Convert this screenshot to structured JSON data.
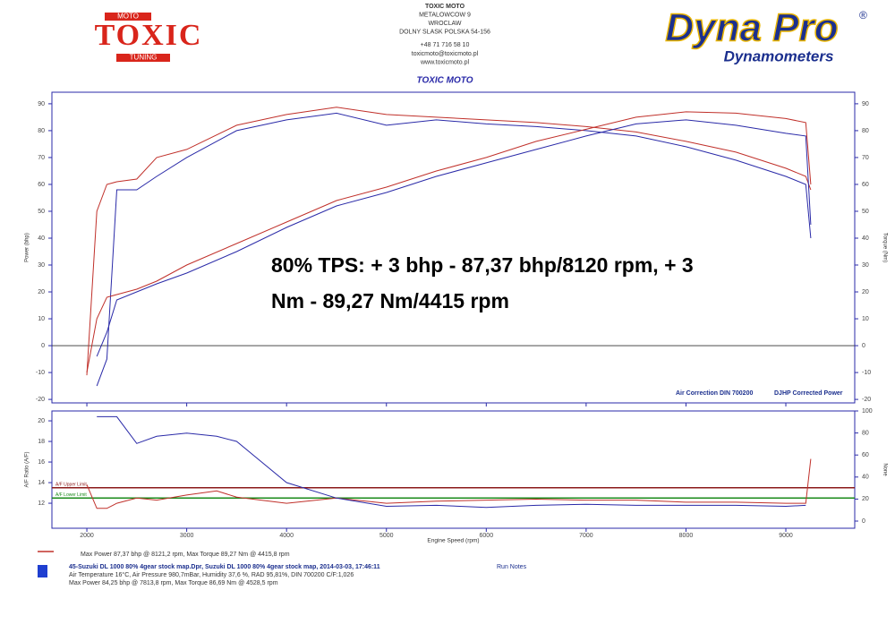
{
  "header": {
    "logo": {
      "main": "TOXIC",
      "top": "MOTO",
      "bottom": "TUNING"
    },
    "address": [
      "TOXIC MOTO",
      "METALOWCOW 9",
      "WROCLAW",
      "DOLNY SLASK POLSKA 54-156",
      "+48 71 716 58 10",
      "toxicmoto@toxicmoto.pl",
      "www.toxicmoto.pl"
    ],
    "subtitle": "TOXIC MOTO",
    "brand": {
      "name": "Dyna Pro",
      "mark": "®",
      "tagline": "Dynamometers"
    }
  },
  "chart_data": [
    {
      "type": "line",
      "ylabel": "Power (bhp)",
      "y2label": "Torque (Nm)",
      "annotation": [
        "80% TPS: + 3 bhp - 87,37 bhp/8120 rpm, + 3",
        "Nm - 89,27 Nm/4415 rpm"
      ],
      "corrections": [
        "Air Correction DIN 700200",
        "DJHP Corrected Power"
      ],
      "x": [
        2000,
        2100,
        2200,
        2300,
        2500,
        2700,
        3000,
        3500,
        4000,
        4500,
        5000,
        5500,
        6000,
        6500,
        7000,
        7500,
        8000,
        8500,
        9000,
        9200,
        9250
      ],
      "xlim": [
        1650,
        9690
      ],
      "xticks": [
        2000,
        3000,
        4000,
        5000,
        6000,
        7000,
        8000,
        9000
      ],
      "xtick_labels": false,
      "ylim": [
        -21.3,
        94.3
      ],
      "yticks": [
        -20,
        -10,
        0,
        10,
        20,
        30,
        40,
        50,
        60,
        70,
        80,
        90
      ],
      "y2lim": [
        -21.3,
        94.3
      ],
      "y2ticks": [
        -20,
        -10,
        0,
        10,
        20,
        30,
        40,
        50,
        60,
        70,
        80,
        90
      ],
      "series": [
        {
          "color": "#c0302a",
          "axis": "y2",
          "values": [
            -11,
            50,
            60,
            61,
            62,
            70,
            73,
            82,
            86,
            88.7,
            86,
            85,
            84,
            83,
            81.5,
            79.5,
            76,
            72,
            66,
            63,
            58
          ]
        },
        {
          "color": "#2a2aa8",
          "axis": "y2",
          "values": [
            null,
            -15,
            -5,
            58,
            58,
            63,
            70,
            80,
            84,
            86.5,
            82,
            84,
            82.5,
            81.5,
            80,
            78,
            74,
            69,
            63,
            60,
            40
          ]
        },
        {
          "color": "#c0302a",
          "values": [
            -10,
            10,
            18,
            19,
            21,
            24,
            30,
            38,
            46,
            54,
            59,
            65,
            70,
            76,
            80.5,
            85,
            87,
            86.5,
            84.5,
            83,
            60
          ]
        },
        {
          "color": "#2a2aa8",
          "values": [
            null,
            -4,
            5,
            17,
            20,
            23,
            27,
            35,
            44,
            52,
            57,
            63,
            68,
            73,
            78,
            82.5,
            84,
            82,
            79,
            78,
            45
          ]
        }
      ]
    },
    {
      "type": "line",
      "ylabel": "A/F Ratio (A/F)",
      "y2label": "None",
      "xlabel": "Engine Speed (rpm)",
      "x": [
        2000,
        2100,
        2200,
        2300,
        2500,
        2700,
        3000,
        3300,
        3500,
        4000,
        4500,
        5000,
        5500,
        6000,
        6500,
        7000,
        7500,
        8000,
        8500,
        9000,
        9200,
        9250
      ],
      "xlim": [
        1650,
        9690
      ],
      "xticks": [
        2000,
        3000,
        4000,
        5000,
        6000,
        7000,
        8000,
        9000
      ],
      "xtick_labels": true,
      "ylim": [
        9.57,
        20.96
      ],
      "yticks": [
        12,
        14,
        16,
        18,
        20
      ],
      "y2lim": [
        -6.5,
        100
      ],
      "y2ticks": [
        0,
        20,
        40,
        60,
        80,
        100
      ],
      "limits": [
        {
          "label": "A/F Upper Limit",
          "value": 13.5,
          "color": "#8b1a1a"
        },
        {
          "label": "A/F Lower Limit",
          "value": 12.5,
          "color": "#1a8a1a"
        }
      ],
      "series": [
        {
          "color": "#c0302a",
          "values": [
            13.8,
            11.5,
            11.5,
            12.0,
            12.5,
            12.3,
            12.8,
            13.2,
            12.6,
            12.0,
            12.5,
            12.0,
            12.2,
            12.3,
            12.4,
            12.3,
            12.3,
            12.1,
            12.1,
            12.0,
            12.0,
            16.3
          ]
        },
        {
          "color": "#2a2aa8",
          "values": [
            null,
            20.4,
            20.4,
            20.4,
            17.8,
            18.5,
            18.8,
            18.5,
            18.0,
            14.0,
            12.5,
            11.7,
            11.8,
            11.6,
            11.8,
            11.9,
            11.8,
            11.8,
            11.8,
            11.7,
            11.8,
            null
          ]
        }
      ]
    }
  ],
  "footer": {
    "run1": "Max Power 87,37 bhp @ 8121,2 rpm, Max Torque 89,27 Nm @ 4415,8 rpm",
    "run2": {
      "file": "45-Suzuki DL 1000 80% 4gear stock map.Dpr,  Suzuki DL 1000 80% 4gear stock map,  2014-03-03,  17:46:11",
      "notes": "Run Notes",
      "conditions": "Air Temperature 16°C, Air Pressure 980,7mBar, Humidity 37,6 %, RAD 95,81%,  DIN 700200  C/F:1,026",
      "max": "Max Power 84,25 bhp @ 7813,8 rpm, Max Torque 86,69 Nm @ 4528,5 rpm"
    }
  }
}
